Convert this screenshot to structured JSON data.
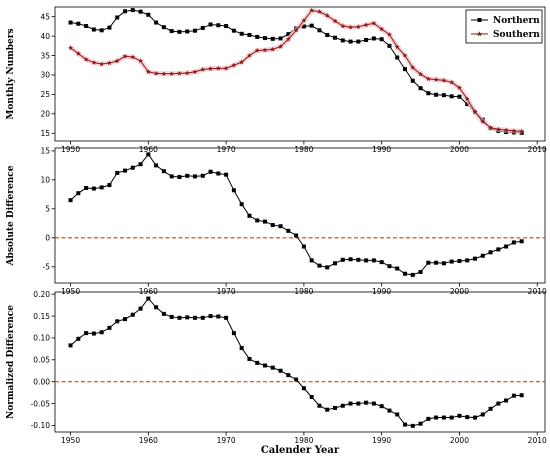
{
  "figure": {
    "xlabel": "Calender Year",
    "colors": {
      "northern": "#000000",
      "southern": "#8b1a1a",
      "southern_glow": "#f4c2c8",
      "zero_line": "#cc4a0a"
    }
  },
  "chart_data": [
    {
      "type": "line",
      "ylabel": "Monthly Numbers",
      "xlim": [
        1948,
        2011
      ],
      "ylim": [
        13,
        47.5
      ],
      "xticks": [
        1950,
        1960,
        1970,
        1980,
        1990,
        2000,
        2010
      ],
      "yticks": [
        15,
        20,
        25,
        30,
        35,
        40,
        45
      ],
      "legend": "top-right",
      "series": [
        {
          "name": "Northern",
          "marker": "square",
          "color": "#000000",
          "x": [
            1950,
            1951,
            1952,
            1953,
            1954,
            1955,
            1956,
            1957,
            1958,
            1959,
            1960,
            1961,
            1962,
            1963,
            1964,
            1965,
            1966,
            1967,
            1968,
            1969,
            1970,
            1971,
            1972,
            1973,
            1974,
            1975,
            1976,
            1977,
            1978,
            1979,
            1980,
            1981,
            1982,
            1983,
            1984,
            1985,
            1986,
            1987,
            1988,
            1989,
            1990,
            1991,
            1992,
            1993,
            1994,
            1995,
            1996,
            1997,
            1998,
            1999,
            2000,
            2001,
            2002,
            2003,
            2004,
            2005,
            2006,
            2007,
            2008
          ],
          "y": [
            43.5,
            43.2,
            42.6,
            41.7,
            41.5,
            42.2,
            44.8,
            46.4,
            46.7,
            46.3,
            45.5,
            43.5,
            42.3,
            41.3,
            41.1,
            41.2,
            41.4,
            42.1,
            43.0,
            42.8,
            42.6,
            41.4,
            40.6,
            40.3,
            39.8,
            39.5,
            39.3,
            39.4,
            40.5,
            42.0,
            42.5,
            42.7,
            41.5,
            40.3,
            39.6,
            38.9,
            38.6,
            38.6,
            39.0,
            39.4,
            39.2,
            37.5,
            34.5,
            31.5,
            28.5,
            26.6,
            25.3,
            24.9,
            24.8,
            24.5,
            24.4,
            22.5,
            20.5,
            18.5,
            16.3,
            15.6,
            15.3,
            15.2,
            15.1
          ]
        },
        {
          "name": "Southern",
          "marker": "star",
          "color": "#8b1a1a",
          "x": [
            1950,
            1951,
            1952,
            1953,
            1954,
            1955,
            1956,
            1957,
            1958,
            1959,
            1960,
            1961,
            1962,
            1963,
            1964,
            1965,
            1966,
            1967,
            1968,
            1969,
            1970,
            1971,
            1972,
            1973,
            1974,
            1975,
            1976,
            1977,
            1978,
            1979,
            1980,
            1981,
            1982,
            1983,
            1984,
            1985,
            1986,
            1987,
            1988,
            1989,
            1990,
            1991,
            1992,
            1993,
            1994,
            1995,
            1996,
            1997,
            1998,
            1999,
            2000,
            2001,
            2002,
            2003,
            2004,
            2005,
            2006,
            2007,
            2008
          ],
          "y": [
            37.0,
            35.5,
            34.0,
            33.2,
            32.8,
            33.1,
            33.6,
            34.8,
            34.6,
            33.6,
            30.8,
            30.4,
            30.3,
            30.3,
            30.4,
            30.5,
            30.8,
            31.4,
            31.6,
            31.7,
            31.7,
            32.5,
            33.3,
            35.0,
            36.3,
            36.4,
            36.6,
            37.3,
            39.2,
            41.5,
            44.0,
            46.6,
            46.3,
            45.3,
            43.9,
            42.6,
            42.3,
            42.4,
            42.9,
            43.3,
            41.8,
            40.4,
            37.2,
            35.0,
            31.9,
            30.2,
            29.0,
            28.8,
            28.6,
            28.1,
            26.7,
            23.8,
            20.5,
            18.0,
            16.4,
            16.0,
            15.8,
            15.6,
            15.5
          ]
        }
      ]
    },
    {
      "type": "line",
      "ylabel": "Absolute Difference",
      "xlim": [
        1948,
        2011
      ],
      "ylim": [
        -7.8,
        15.5
      ],
      "xticks": [
        1950,
        1960,
        1970,
        1980,
        1990,
        2000,
        2010
      ],
      "yticks": [
        -5,
        0,
        5,
        10,
        15
      ],
      "reference_line": 0,
      "series": [
        {
          "marker": "square",
          "color": "#000000",
          "x": [
            1950,
            1951,
            1952,
            1953,
            1954,
            1955,
            1956,
            1957,
            1958,
            1959,
            1960,
            1961,
            1962,
            1963,
            1964,
            1965,
            1966,
            1967,
            1968,
            1969,
            1970,
            1971,
            1972,
            1973,
            1974,
            1975,
            1976,
            1977,
            1978,
            1979,
            1980,
            1981,
            1982,
            1983,
            1984,
            1985,
            1986,
            1987,
            1988,
            1989,
            1990,
            1991,
            1992,
            1993,
            1994,
            1995,
            1996,
            1997,
            1998,
            1999,
            2000,
            2001,
            2002,
            2003,
            2004,
            2005,
            2006,
            2007,
            2008
          ],
          "y": [
            6.5,
            7.7,
            8.6,
            8.5,
            8.7,
            9.1,
            11.2,
            11.6,
            12.1,
            12.7,
            14.4,
            12.5,
            11.5,
            10.6,
            10.5,
            10.7,
            10.6,
            10.7,
            11.4,
            11.1,
            10.9,
            8.2,
            5.8,
            3.8,
            3.0,
            2.8,
            2.2,
            2.0,
            1.2,
            0.4,
            -1.5,
            -3.9,
            -4.8,
            -5.1,
            -4.4,
            -3.8,
            -3.7,
            -3.8,
            -3.9,
            -3.9,
            -4.2,
            -4.9,
            -5.3,
            -6.2,
            -6.4,
            -5.9,
            -4.3,
            -4.3,
            -4.4,
            -4.1,
            -4.0,
            -3.9,
            -3.6,
            -3.1,
            -2.5,
            -2.0,
            -1.5,
            -0.8,
            -0.6
          ]
        }
      ]
    },
    {
      "type": "line",
      "ylabel": "Normalized Difference",
      "xlim": [
        1948,
        2011
      ],
      "ylim": [
        -0.115,
        0.205
      ],
      "xticks": [
        1950,
        1960,
        1970,
        1980,
        1990,
        2000,
        2010
      ],
      "yticks": [
        -0.1,
        -0.05,
        0.0,
        0.05,
        0.1,
        0.15,
        0.2
      ],
      "reference_line": 0,
      "series": [
        {
          "marker": "square",
          "color": "#000000",
          "x": [
            1950,
            1951,
            1952,
            1953,
            1954,
            1955,
            1956,
            1957,
            1958,
            1959,
            1960,
            1961,
            1962,
            1963,
            1964,
            1965,
            1966,
            1967,
            1968,
            1969,
            1970,
            1971,
            1972,
            1973,
            1974,
            1975,
            1976,
            1977,
            1978,
            1979,
            1980,
            1981,
            1982,
            1983,
            1984,
            1985,
            1986,
            1987,
            1988,
            1989,
            1990,
            1991,
            1992,
            1993,
            1994,
            1995,
            1996,
            1997,
            1998,
            1999,
            2000,
            2001,
            2002,
            2003,
            2004,
            2005,
            2006,
            2007,
            2008
          ],
          "y": [
            0.083,
            0.098,
            0.111,
            0.11,
            0.113,
            0.123,
            0.138,
            0.143,
            0.153,
            0.167,
            0.19,
            0.17,
            0.155,
            0.148,
            0.146,
            0.147,
            0.146,
            0.146,
            0.15,
            0.149,
            0.146,
            0.111,
            0.077,
            0.052,
            0.043,
            0.037,
            0.032,
            0.025,
            0.015,
            0.005,
            -0.015,
            -0.035,
            -0.055,
            -0.064,
            -0.06,
            -0.055,
            -0.05,
            -0.05,
            -0.048,
            -0.05,
            -0.056,
            -0.066,
            -0.075,
            -0.098,
            -0.101,
            -0.096,
            -0.085,
            -0.082,
            -0.082,
            -0.082,
            -0.078,
            -0.081,
            -0.082,
            -0.075,
            -0.062,
            -0.05,
            -0.043,
            -0.032,
            -0.031
          ]
        }
      ]
    }
  ]
}
